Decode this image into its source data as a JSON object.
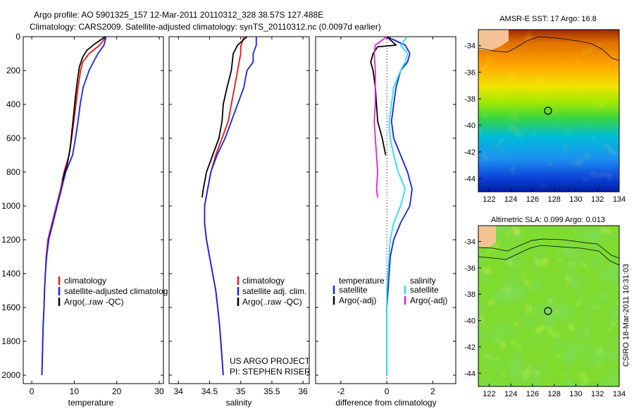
{
  "header": {
    "line1": "Argo profile: AO 5901325_157 12-Mar-2011 20110312_328 38.57S 127.488E",
    "line2": "Climatology: CARS2009. Satellite-adjusted climatology: synTS_20110312.nc (0.0097d earlier)"
  },
  "side_label": "CSIRO 18-Mar-2011 10:31:03",
  "colors": {
    "red": "#ee1111",
    "blue": "#1122ee",
    "black": "#000000",
    "cyan": "#22e0ee",
    "magenta": "#dd22dd",
    "land": "#f5c393"
  },
  "chart_data": [
    {
      "type": "line",
      "xlabel": "temperature",
      "ylabel": "",
      "xlim": [
        -2,
        31
      ],
      "ylim": [
        2050,
        0
      ],
      "xticks": [
        "0",
        "10",
        "20",
        "30"
      ],
      "yticks": [
        "0",
        "200",
        "400",
        "600",
        "800",
        "1000",
        "1200",
        "1400",
        "1600",
        "1800",
        "2000"
      ],
      "legend": [
        "climatology",
        "satellite-adjusted climatolog",
        "Argo(..raw -QC)"
      ],
      "series": [
        {
          "name": "climatology",
          "color": "#ee1111",
          "points": [
            [
              17.5,
              0
            ],
            [
              16.0,
              50
            ],
            [
              13.5,
              100
            ],
            [
              12.0,
              150
            ],
            [
              11.5,
              200
            ],
            [
              10.9,
              300
            ],
            [
              10.4,
              400
            ],
            [
              9.9,
              500
            ],
            [
              9.4,
              600
            ],
            [
              8.8,
              700
            ],
            [
              7.6,
              800
            ],
            [
              6.8,
              900
            ],
            [
              5.8,
              1000
            ],
            [
              4.8,
              1100
            ],
            [
              3.8,
              1200
            ],
            [
              3.4,
              1300
            ],
            [
              3.2,
              1400
            ],
            [
              3.0,
              1500
            ],
            [
              2.9,
              1600
            ],
            [
              2.7,
              1700
            ],
            [
              2.6,
              1800
            ],
            [
              2.5,
              1900
            ],
            [
              2.4,
              2000
            ]
          ]
        },
        {
          "name": "satellite-adjusted climatology",
          "color": "#1122ee",
          "points": [
            [
              17.5,
              0
            ],
            [
              17.0,
              50
            ],
            [
              15.6,
              100
            ],
            [
              14.5,
              150
            ],
            [
              13.5,
              200
            ],
            [
              12.1,
              300
            ],
            [
              11.4,
              400
            ],
            [
              10.9,
              500
            ],
            [
              10.3,
              600
            ],
            [
              9.6,
              700
            ],
            [
              8.0,
              800
            ],
            [
              7.0,
              900
            ],
            [
              6.0,
              1000
            ],
            [
              5.0,
              1100
            ],
            [
              4.0,
              1200
            ],
            [
              3.5,
              1300
            ],
            [
              3.2,
              1400
            ],
            [
              3.0,
              1500
            ],
            [
              2.9,
              1600
            ],
            [
              2.7,
              1700
            ],
            [
              2.6,
              1800
            ],
            [
              2.5,
              1900
            ],
            [
              2.4,
              2000
            ]
          ]
        },
        {
          "name": "Argo(..raw -QC)",
          "color": "#000000",
          "points": [
            [
              17.3,
              0
            ],
            [
              15.0,
              40
            ],
            [
              13.0,
              80
            ],
            [
              12.0,
              120
            ],
            [
              11.2,
              180
            ],
            [
              10.8,
              250
            ],
            [
              10.3,
              350
            ],
            [
              9.9,
              450
            ],
            [
              9.5,
              550
            ],
            [
              9.1,
              650
            ],
            [
              8.4,
              750
            ],
            [
              7.2,
              850
            ]
          ]
        }
      ]
    },
    {
      "type": "line",
      "xlabel": "salinity",
      "ylabel": "",
      "xlim": [
        33.85,
        36.1
      ],
      "ylim": [
        2050,
        0
      ],
      "xticks": [
        "34",
        "34.5",
        "35",
        "35.5",
        "36"
      ],
      "legend": [
        "climatology",
        "satellite adj. clim.",
        "Argo(..raw -QC)"
      ],
      "annotation": [
        "US ARGO PROJECT",
        "PI: STEPHEN RISER"
      ],
      "series": [
        {
          "name": "climatology",
          "color": "#ee1111",
          "points": [
            [
              35.05,
              0
            ],
            [
              35.0,
              60
            ],
            [
              35.0,
              100
            ],
            [
              34.95,
              200
            ],
            [
              34.9,
              300
            ],
            [
              34.85,
              400
            ],
            [
              34.8,
              500
            ],
            [
              34.7,
              600
            ],
            [
              34.6,
              700
            ],
            [
              34.52,
              800
            ],
            [
              34.47,
              900
            ],
            [
              34.42,
              1000
            ],
            [
              34.42,
              1100
            ],
            [
              34.45,
              1200
            ],
            [
              34.5,
              1300
            ],
            [
              34.55,
              1400
            ],
            [
              34.6,
              1500
            ],
            [
              34.63,
              1600
            ],
            [
              34.66,
              1700
            ],
            [
              34.68,
              1800
            ],
            [
              34.7,
              1900
            ],
            [
              34.72,
              2000
            ]
          ]
        },
        {
          "name": "satellite adj. clim.",
          "color": "#1122ee",
          "points": [
            [
              35.25,
              0
            ],
            [
              35.25,
              50
            ],
            [
              35.2,
              100
            ],
            [
              35.2,
              150
            ],
            [
              35.1,
              200
            ],
            [
              35.05,
              300
            ],
            [
              34.95,
              400
            ],
            [
              34.85,
              500
            ],
            [
              34.75,
              600
            ],
            [
              34.62,
              700
            ],
            [
              34.52,
              800
            ],
            [
              34.47,
              900
            ],
            [
              34.42,
              1000
            ],
            [
              34.42,
              1100
            ],
            [
              34.45,
              1200
            ],
            [
              34.5,
              1300
            ],
            [
              34.55,
              1400
            ],
            [
              34.6,
              1500
            ],
            [
              34.63,
              1600
            ],
            [
              34.66,
              1700
            ],
            [
              34.68,
              1800
            ],
            [
              34.7,
              1900
            ],
            [
              34.72,
              2000
            ]
          ]
        },
        {
          "name": "Argo(..raw -QC)",
          "color": "#000000",
          "points": [
            [
              35.1,
              0
            ],
            [
              34.95,
              50
            ],
            [
              34.88,
              100
            ],
            [
              34.85,
              200
            ],
            [
              34.78,
              300
            ],
            [
              34.72,
              400
            ],
            [
              34.7,
              500
            ],
            [
              34.65,
              600
            ],
            [
              34.55,
              700
            ],
            [
              34.45,
              800
            ],
            [
              34.4,
              900
            ],
            [
              34.38,
              950
            ]
          ]
        }
      ]
    },
    {
      "type": "line",
      "xlabel": "difference from climatology",
      "ylabel": "",
      "xlim": [
        -3.1,
        3.0
      ],
      "ylim": [
        2050,
        0
      ],
      "xticks": [
        "-2",
        "0",
        "2"
      ],
      "legend_titles": [
        "temperature",
        "salinity"
      ],
      "legend": [
        "satellite",
        "Argo(-adj)",
        "satellite",
        "Argo(-adj)"
      ],
      "series": [
        {
          "name": "satellite",
          "color": "#1122ee",
          "points": [
            [
              0.0,
              0
            ],
            [
              0.8,
              50
            ],
            [
              1.0,
              100
            ],
            [
              0.9,
              150
            ],
            [
              0.6,
              200
            ],
            [
              0.4,
              300
            ],
            [
              0.3,
              400
            ],
            [
              0.2,
              500
            ],
            [
              0.3,
              600
            ],
            [
              0.6,
              700
            ],
            [
              0.9,
              800
            ],
            [
              1.1,
              900
            ],
            [
              1.0,
              1000
            ],
            [
              0.6,
              1100
            ],
            [
              0.3,
              1200
            ],
            [
              0.15,
              1300
            ],
            [
              0.1,
              1400
            ],
            [
              0.05,
              1500
            ],
            [
              0,
              1600
            ],
            [
              0,
              2000
            ]
          ]
        },
        {
          "name": "Argo(-adj)",
          "color": "#000000",
          "points": [
            [
              0.0,
              0
            ],
            [
              0.4,
              50
            ],
            [
              -0.4,
              60
            ],
            [
              -0.6,
              100
            ],
            [
              -0.7,
              150
            ],
            [
              -0.6,
              200
            ],
            [
              -0.5,
              300
            ],
            [
              -0.45,
              400
            ],
            [
              -0.4,
              500
            ],
            [
              -0.2,
              600
            ],
            [
              -0.05,
              700
            ]
          ]
        },
        {
          "name": "satellite",
          "color": "#22e0ee",
          "points": [
            [
              0.9,
              0
            ],
            [
              0.6,
              50
            ],
            [
              0.9,
              100
            ],
            [
              0.8,
              150
            ],
            [
              0.6,
              200
            ],
            [
              0.3,
              300
            ],
            [
              0.2,
              400
            ],
            [
              0.1,
              500
            ],
            [
              0.15,
              600
            ],
            [
              0.3,
              700
            ],
            [
              0.5,
              800
            ],
            [
              0.8,
              900
            ],
            [
              0.6,
              1000
            ],
            [
              0.3,
              1100
            ],
            [
              0.15,
              1200
            ],
            [
              0.1,
              1300
            ],
            [
              0.05,
              1400
            ],
            [
              0,
              1500
            ],
            [
              0,
              2000
            ]
          ]
        },
        {
          "name": "Argo(-adj)",
          "color": "#dd22dd",
          "points": [
            [
              0.0,
              0
            ],
            [
              -0.5,
              50
            ],
            [
              -0.55,
              100
            ],
            [
              -0.5,
              200
            ],
            [
              -0.5,
              300
            ],
            [
              -0.5,
              400
            ],
            [
              -0.55,
              500
            ],
            [
              -0.5,
              600
            ],
            [
              -0.45,
              700
            ],
            [
              -0.4,
              800
            ],
            [
              -0.45,
              900
            ],
            [
              -0.4,
              950
            ]
          ]
        }
      ]
    },
    {
      "type": "heatmap",
      "title": "AMSR-E SST: 17 Argo: 16.8",
      "xlim": [
        121,
        134
      ],
      "ylim": [
        -45,
        -32.8
      ],
      "xticks": [
        "122",
        "124",
        "126",
        "128",
        "130",
        "132",
        "134"
      ],
      "yticks": [
        "-34",
        "-36",
        "-38",
        "-40",
        "-42",
        "-44"
      ],
      "marker": [
        127.488,
        -38.57
      ],
      "colormap": "jet"
    },
    {
      "type": "heatmap",
      "title": "Altimetric SLA: 0.099 Argo: 0.013",
      "xlim": [
        121,
        134
      ],
      "ylim": [
        -45,
        -32.8
      ],
      "xticks": [
        "122",
        "124",
        "126",
        "128",
        "130",
        "132",
        "134"
      ],
      "yticks": [
        "-34",
        "-36",
        "-38",
        "-40",
        "-42",
        "-44"
      ],
      "marker": [
        127.488,
        -38.57
      ],
      "colormap": "jet"
    }
  ]
}
